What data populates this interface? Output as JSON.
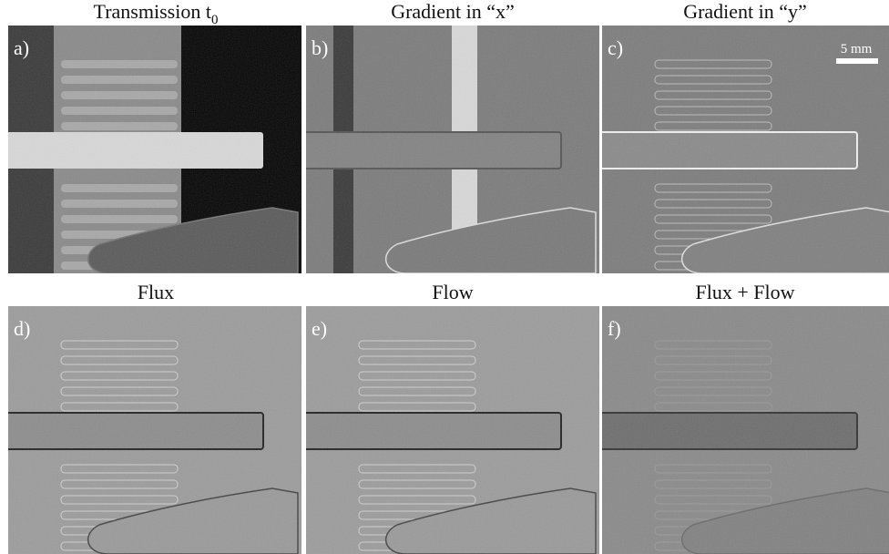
{
  "panels": [
    {
      "label": "a)",
      "title": "Transmission t",
      "title_sub": "0"
    },
    {
      "label": "b)",
      "title": "Gradient in “x”"
    },
    {
      "label": "c)",
      "title": "Gradient in “y”"
    },
    {
      "label": "d)",
      "title": "Flux"
    },
    {
      "label": "e)",
      "title": "Flow"
    },
    {
      "label": "f)",
      "title": "Flux + Flow"
    }
  ],
  "scale_bar": "5 mm"
}
